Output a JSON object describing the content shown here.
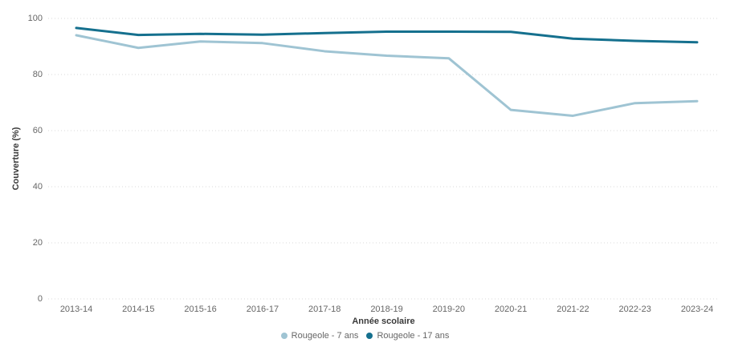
{
  "chart_data": {
    "type": "line",
    "title": "",
    "xlabel": "Année scolaire",
    "ylabel": "Couverture (%)",
    "categories": [
      "2013-14",
      "2014-15",
      "2015-16",
      "2016-17",
      "2017-18",
      "2018-19",
      "2019-20",
      "2020-21",
      "2021-22",
      "2022-23",
      "2023-24"
    ],
    "y_ticks": [
      0,
      20,
      40,
      60,
      80,
      100
    ],
    "ylim": [
      0,
      100
    ],
    "grid": "horizontal-dotted",
    "legend_position": "bottom-center",
    "series": [
      {
        "name": "Rougeole - 7 ans",
        "color": "#9fc4d3",
        "values": [
          94.0,
          89.5,
          91.8,
          91.2,
          88.3,
          86.7,
          85.8,
          67.4,
          65.3,
          69.8,
          70.5
        ]
      },
      {
        "name": "Rougeole - 17 ans",
        "color": "#15708e",
        "values": [
          96.6,
          94.1,
          94.5,
          94.2,
          94.8,
          95.3,
          95.3,
          95.2,
          92.8,
          92.0,
          91.5
        ]
      }
    ]
  },
  "colors": {
    "background": "#ffffff",
    "gridline": "#d8d8d8",
    "tick_text": "#666666",
    "axis_title_text": "#3a3a3a",
    "series_light": "#9fc4d3",
    "series_dark": "#15708e"
  }
}
